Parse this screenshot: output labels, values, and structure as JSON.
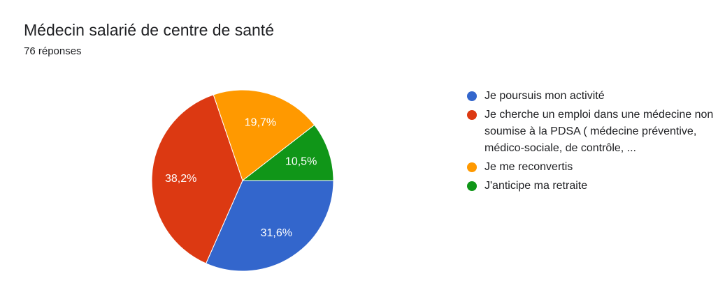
{
  "header": {
    "title": "Médecin salarié de centre de santé",
    "subtitle": "76 réponses"
  },
  "chart_data": {
    "type": "pie",
    "title": "Médecin salarié de centre de santé",
    "subtitle": "76 réponses",
    "legend_position": "right",
    "series": [
      {
        "name": "Je poursuis mon activité",
        "value": 31.6,
        "label": "31,6%",
        "color": "#3366cc"
      },
      {
        "name": "Je cherche un emploi dans une médecine non soumise à la PDSA ( médecine préventive, médico-sociale, de contrôle, ...",
        "value": 38.2,
        "label": "38,2%",
        "color": "#dc3912"
      },
      {
        "name": "Je me reconvertis",
        "value": 19.7,
        "label": "19,7%",
        "color": "#ff9900"
      },
      {
        "name": "J'anticipe ma retraite",
        "value": 10.5,
        "label": "10,5%",
        "color": "#109618"
      }
    ]
  }
}
